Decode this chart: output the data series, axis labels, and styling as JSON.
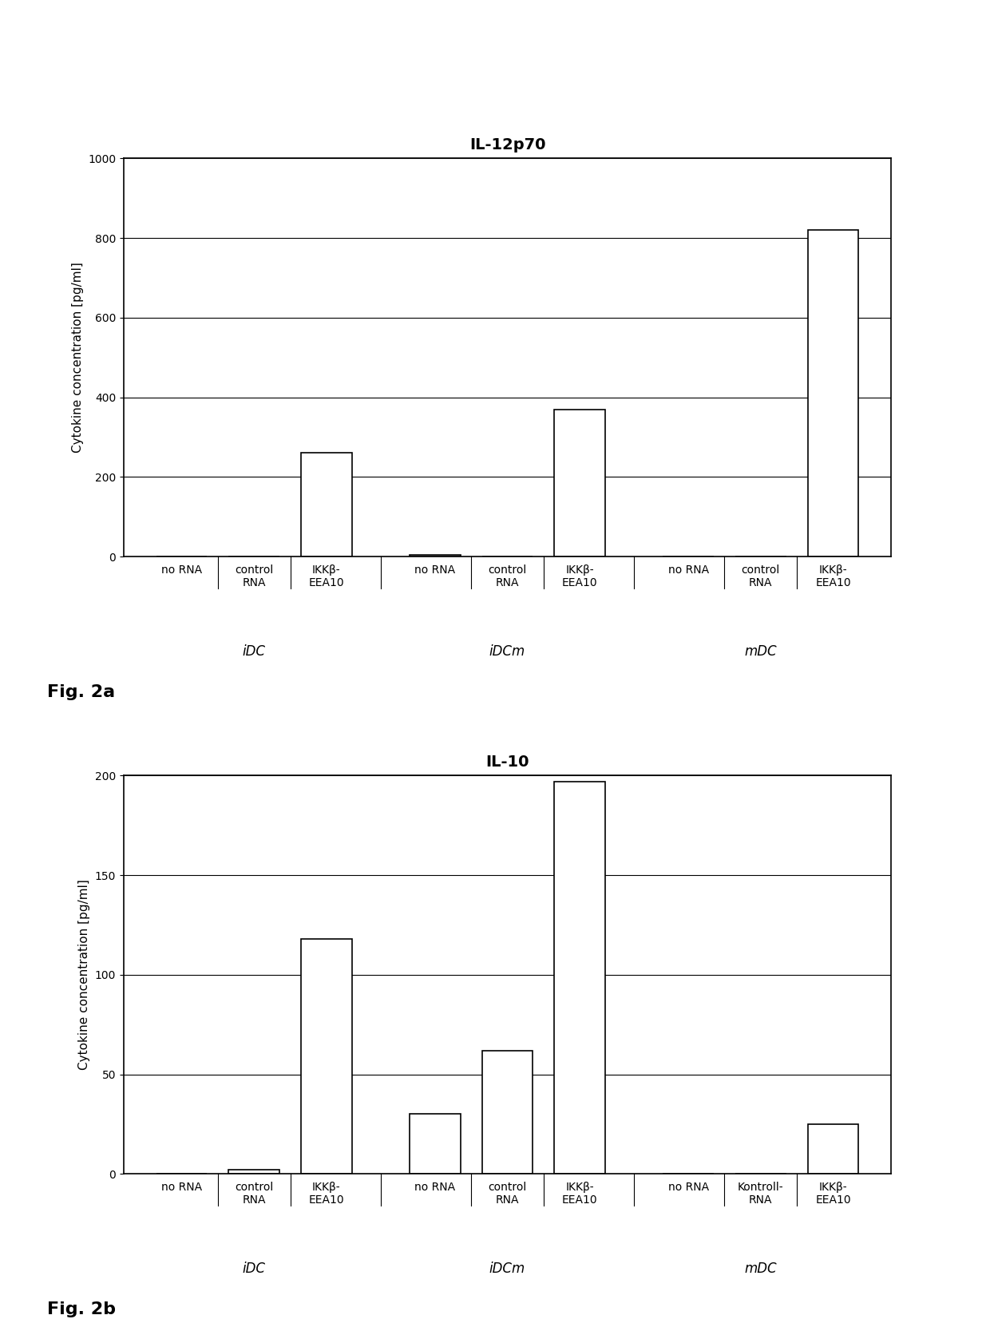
{
  "fig_a": {
    "title": "IL-12p70",
    "ylabel": "Cytokine concentration [pg/ml]",
    "ylim": [
      0,
      1000
    ],
    "yticks": [
      0,
      200,
      400,
      600,
      800,
      1000
    ],
    "idc_vals": [
      0,
      0,
      260
    ],
    "idcm_vals": [
      5,
      0,
      370
    ],
    "mdc_vals": [
      0,
      0,
      820
    ],
    "fig_label": "Fig. 2a",
    "idc_labels": [
      "no RNA",
      "control\nRNA",
      "IKKβ-\nEEA10"
    ],
    "idcm_labels": [
      "no RNA",
      "control\nRNA",
      "IKKβ-\nEEA10"
    ],
    "mdc_labels": [
      "no RNA",
      "control\nRNA",
      "IKKβ-\nEEA10"
    ]
  },
  "fig_b": {
    "title": "IL-10",
    "ylabel": "Cytokine concentration [pg/ml]",
    "ylim": [
      0,
      200
    ],
    "yticks": [
      0,
      50,
      100,
      150,
      200
    ],
    "idc_vals": [
      0,
      2,
      118
    ],
    "idcm_vals": [
      30,
      62,
      197
    ],
    "mdc_vals": [
      0,
      0,
      25
    ],
    "fig_label": "Fig. 2b",
    "idc_labels": [
      "no RNA",
      "control\nRNA",
      "IKKβ-\nEEA10"
    ],
    "idcm_labels": [
      "no RNA",
      "control\nRNA",
      "IKKβ-\nEEA10"
    ],
    "mdc_labels": [
      "no RNA",
      "Kontroll-\nRNA",
      "IKKβ-\nEEA10"
    ]
  },
  "bar_color": "#ffffff",
  "bar_edgecolor": "#000000",
  "background_color": "#ffffff",
  "bar_width": 0.7,
  "group_labels": [
    "iDC",
    "iDCm",
    "mDC"
  ],
  "fig_label_fontsize": 16,
  "title_fontsize": 14,
  "ylabel_fontsize": 11,
  "tick_fontsize": 10,
  "group_label_fontsize": 12
}
